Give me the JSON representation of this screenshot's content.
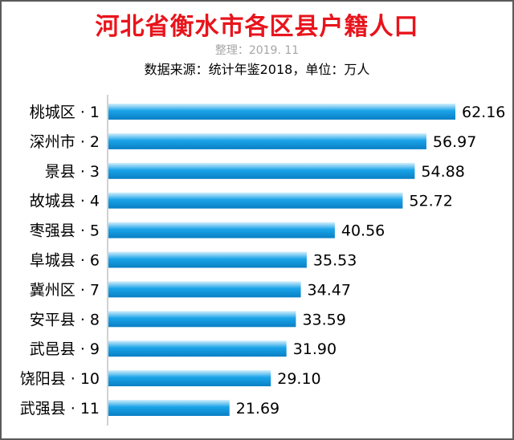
{
  "title": "河北省衡水市各区县户籍人口",
  "subtitle": "整理：2019. 11",
  "source": "数据来源：统计年鉴2018，单位：万人",
  "colors": {
    "title": "#e8141c",
    "bar_top": "#d6f0fc",
    "bar_mid": "#1aa3e8",
    "bar_bottom": "#0a7fc4",
    "axis": "#a6a6a6"
  },
  "chart_data": {
    "type": "bar",
    "orientation": "horizontal",
    "categories": [
      "桃城区 · 1",
      "深州市 · 2",
      "景县 · 3",
      "故城县 · 4",
      "枣强县 · 5",
      "阜城县 · 6",
      "冀州区 · 7",
      "安平县 · 8",
      "武邑县 · 9",
      "饶阳县 · 10",
      "武强县 · 11"
    ],
    "values": [
      62.16,
      56.97,
      54.88,
      52.72,
      40.56,
      35.53,
      34.47,
      33.59,
      31.9,
      29.1,
      21.69
    ],
    "value_labels": [
      "62.16",
      "56.97",
      "54.88",
      "52.72",
      "40.56",
      "35.53",
      "34.47",
      "33.59",
      "31.90",
      "29.10",
      "21.69"
    ],
    "xlim": [
      0,
      65
    ],
    "grid": false,
    "legend": "none"
  }
}
